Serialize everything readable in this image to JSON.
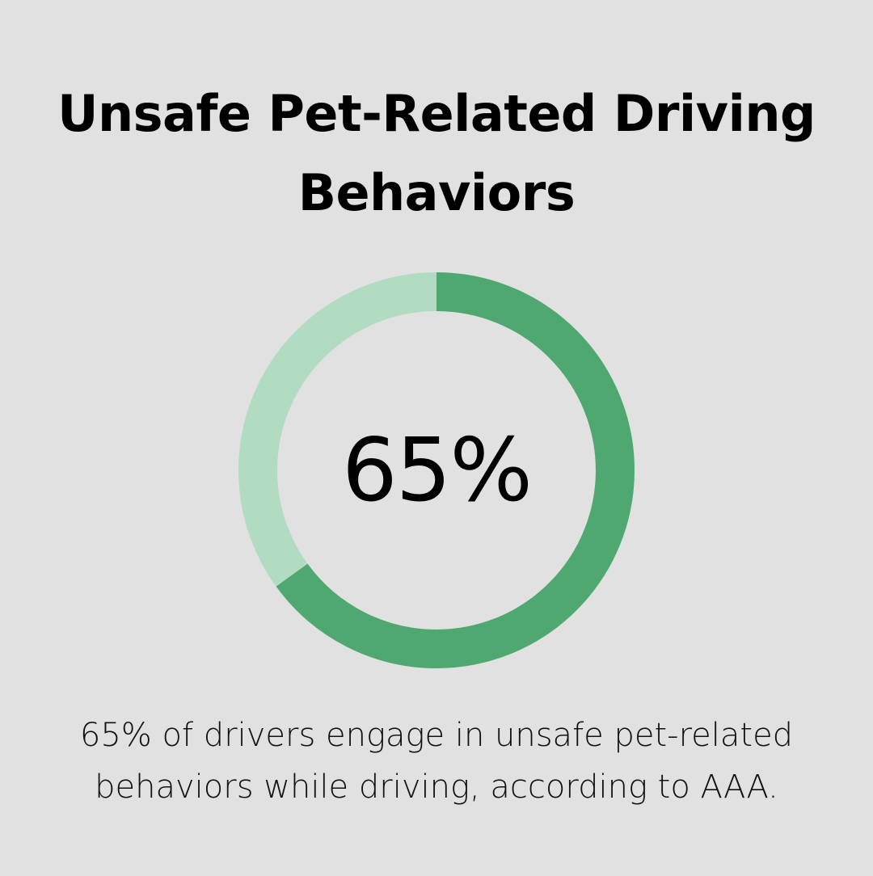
{
  "chart_data": {
    "type": "pie",
    "title_lines": [
      "Unsafe Pet-Related Driving",
      "Behaviors"
    ],
    "value": 65,
    "center_label": "65%",
    "caption_lines": [
      "65% of drivers engage in unsafe pet-related",
      "behaviors while driving, according to AAA."
    ],
    "colors": {
      "value": "#4ea86f",
      "remainder": "#b2dcc2",
      "background": "#e0e1e0"
    }
  }
}
